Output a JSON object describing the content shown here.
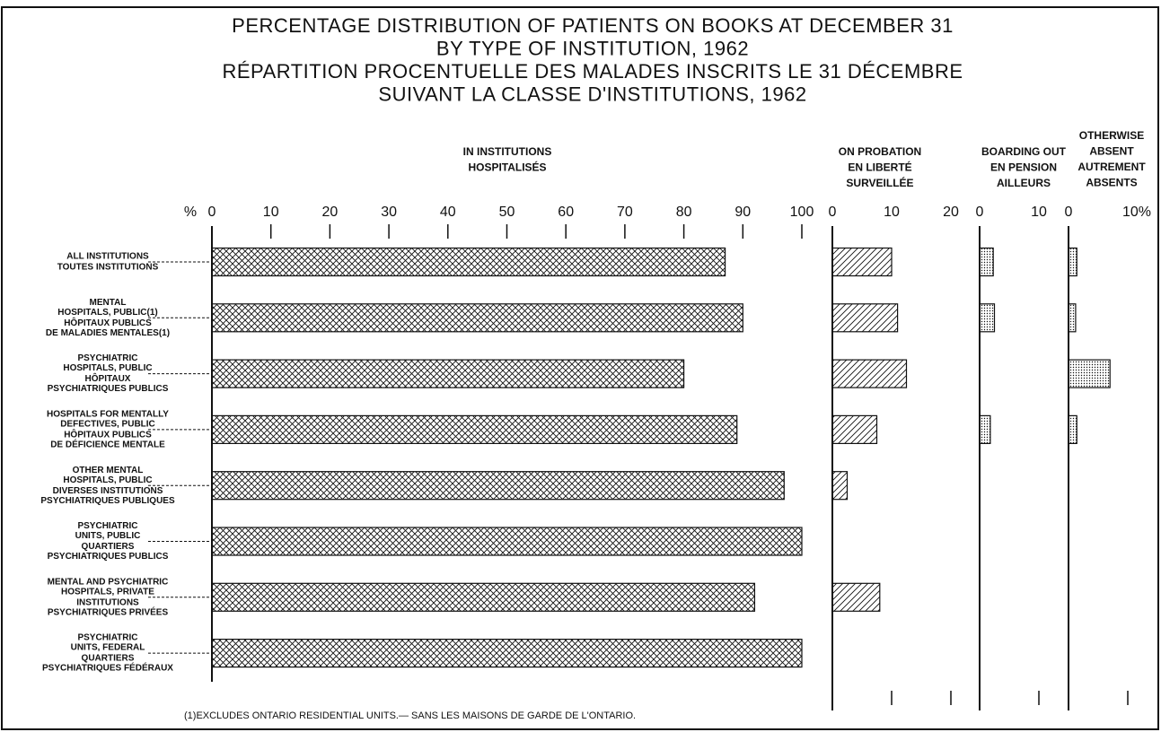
{
  "chart_data": {
    "type": "bar",
    "title": [
      "PERCENTAGE DISTRIBUTION OF PATIENTS ON BOOKS AT DECEMBER 31",
      "BY TYPE OF INSTITUTION, 1962",
      "RÉPARTITION PROCENTUELLE DES MALADES INSCRITS LE 31 DÉCEMBRE",
      "SUIVANT LA CLASSE D'INSTITUTIONS, 1962"
    ],
    "unit_label": "%",
    "categories": [
      [
        [
          "ALL INSTITUTIONS"
        ],
        [
          "TOUTES INSTITUTIONS"
        ]
      ],
      [
        [
          "MENTAL",
          "HOSPITALS, PUBLIC(1)"
        ],
        [
          "HÔPITAUX PUBLICS",
          "DE MALADIES MENTALES(1)"
        ]
      ],
      [
        [
          "PSYCHIATRIC",
          "HOSPITALS, PUBLIC"
        ],
        [
          "HÔPITAUX",
          "PSYCHIATRIQUES PUBLICS"
        ]
      ],
      [
        [
          "HOSPITALS FOR MENTALLY",
          "DEFECTIVES, PUBLIC"
        ],
        [
          "HÔPITAUX PUBLICS",
          "DE DÉFICIENCE MENTALE"
        ]
      ],
      [
        [
          "OTHER MENTAL",
          "HOSPITALS, PUBLIC"
        ],
        [
          "DIVERSES INSTITUTIONS",
          "PSYCHIATRIQUES PUBLIQUES"
        ]
      ],
      [
        [
          "PSYCHIATRIC",
          "UNITS, PUBLIC"
        ],
        [
          "QUARTIERS",
          "PSYCHIATRIQUES PUBLICS"
        ]
      ],
      [
        [
          "MENTAL AND PSYCHIATRIC",
          "HOSPITALS, PRIVATE"
        ],
        [
          "INSTITUTIONS",
          "PSYCHIATRIQUES PRIVÉES"
        ]
      ],
      [
        [
          "PSYCHIATRIC",
          "UNITS, FEDERAL"
        ],
        [
          "QUARTIERS",
          "PSYCHIATRIQUES FÉDÉRAUX"
        ]
      ]
    ],
    "panels": [
      {
        "title": [
          "IN INSTITUTIONS",
          "HOSPITALISÉS"
        ],
        "pattern": "crosshatch",
        "xlim": [
          0,
          100
        ],
        "xticks": [
          0,
          10,
          20,
          30,
          40,
          50,
          60,
          70,
          80,
          90,
          100
        ],
        "values": [
          87,
          90,
          80,
          89,
          97,
          100,
          92,
          100
        ]
      },
      {
        "title": [
          "ON PROBATION",
          "EN LIBERTÉ",
          "SURVEILLÉE"
        ],
        "pattern": "hatch",
        "xlim": [
          0,
          20
        ],
        "xticks": [
          0,
          10,
          20
        ],
        "values": [
          10,
          11,
          12.5,
          7.5,
          2.5,
          null,
          8,
          null
        ]
      },
      {
        "title": [
          "BOARDING OUT",
          "EN PENSION",
          "AILLEURS"
        ],
        "pattern": "dots",
        "xlim": [
          0,
          10
        ],
        "xticks": [
          0,
          10
        ],
        "values": [
          2.3,
          2.5,
          null,
          1.8,
          null,
          null,
          null,
          null
        ]
      },
      {
        "title": [
          "OTHERWISE",
          "ABSENT",
          "AUTREMENT",
          "ABSENTS"
        ],
        "pattern": "dots",
        "xlim": [
          0,
          10
        ],
        "xticks": [
          0,
          {
            "value": 10,
            "label": "10%"
          }
        ],
        "values": [
          1.4,
          1.2,
          7,
          1.4,
          null,
          null,
          null,
          null
        ]
      }
    ],
    "footnote": "(1)EXCLUDES ONTARIO RESIDENTIAL UNITS.— SANS LES MAISONS DE GARDE DE L'ONTARIO."
  }
}
